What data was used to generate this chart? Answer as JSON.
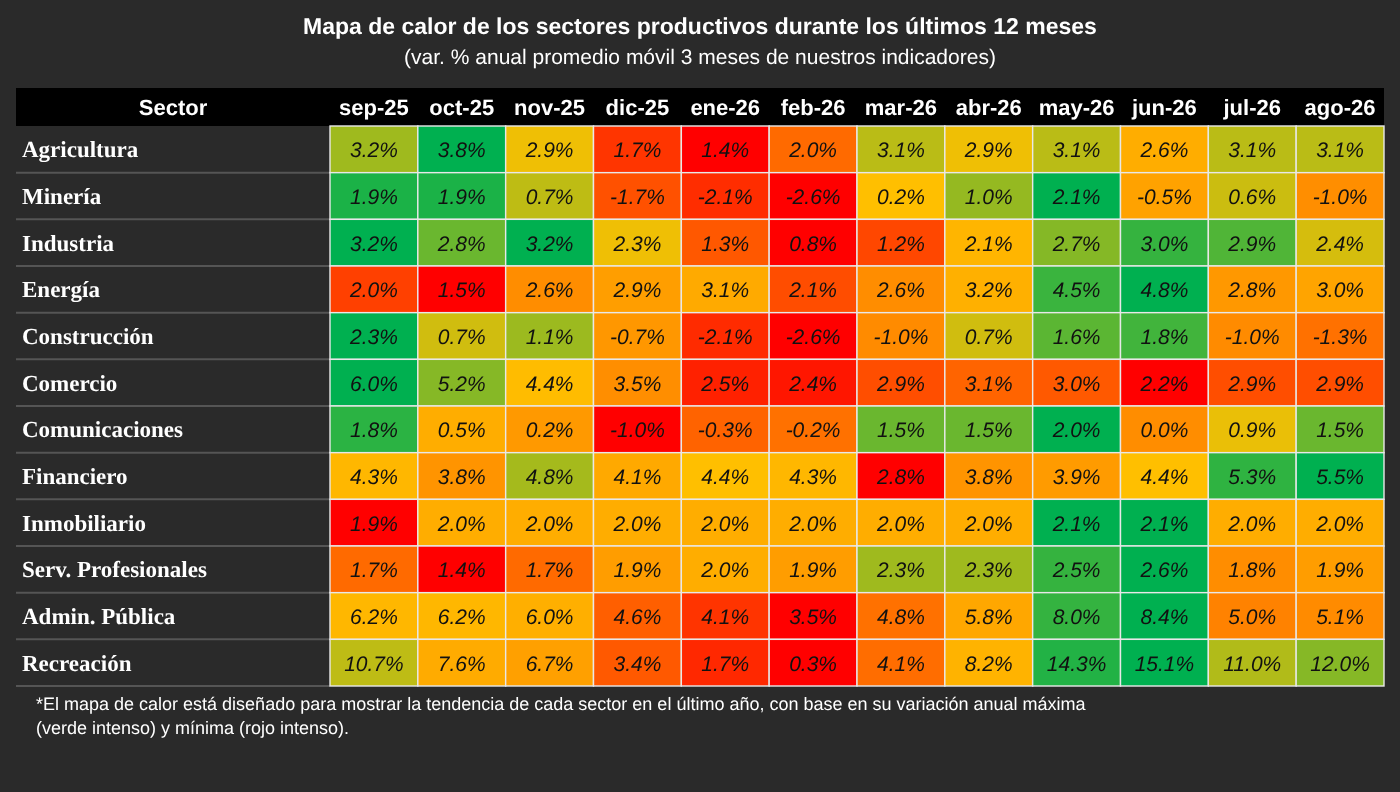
{
  "chart_data": {
    "type": "heatmap",
    "title": "Mapa de calor de los sectores productivos durante los últimos 12 meses",
    "subtitle": "(var. % anual promedio móvil 3 meses de nuestros indicadores)",
    "ylabel": "Sector",
    "categories": [
      "sep-25",
      "oct-25",
      "nov-25",
      "dic-25",
      "ene-26",
      "feb-26",
      "mar-26",
      "abr-26",
      "may-26",
      "jun-26",
      "jul-26",
      "ago-26"
    ],
    "y_categories": [
      "Agricultura",
      "Minería",
      "Industria",
      "Energía",
      "Construcción",
      "Comercio",
      "Comunicaciones",
      "Financiero",
      "Inmobiliario",
      "Serv. Profesionales",
      "Admin. Pública",
      "Recreación"
    ],
    "cells": [
      [
        3.2,
        3.8,
        2.9,
        1.7,
        1.4,
        2.0,
        3.1,
        2.9,
        3.1,
        2.6,
        3.1,
        3.1
      ],
      [
        1.9,
        1.9,
        0.7,
        -1.7,
        -2.1,
        -2.6,
        0.2,
        1.0,
        2.1,
        -0.5,
        0.6,
        -1.0
      ],
      [
        3.2,
        2.8,
        3.2,
        2.3,
        1.3,
        0.8,
        1.2,
        2.1,
        2.7,
        3.0,
        2.9,
        2.4
      ],
      [
        2.0,
        1.5,
        2.6,
        2.9,
        3.1,
        2.1,
        2.6,
        3.2,
        4.5,
        4.8,
        2.8,
        3.0
      ],
      [
        2.3,
        0.7,
        1.1,
        -0.7,
        -2.1,
        -2.6,
        -1.0,
        0.7,
        1.6,
        1.8,
        -1.0,
        -1.3
      ],
      [
        6.0,
        5.2,
        4.4,
        3.5,
        2.5,
        2.4,
        2.9,
        3.1,
        3.0,
        2.2,
        2.9,
        2.9
      ],
      [
        1.8,
        0.5,
        0.2,
        -1.0,
        -0.3,
        -0.2,
        1.5,
        1.5,
        2.0,
        0.0,
        0.9,
        1.5
      ],
      [
        4.3,
        3.8,
        4.8,
        4.1,
        4.4,
        4.3,
        2.8,
        3.8,
        3.9,
        4.4,
        5.3,
        5.5
      ],
      [
        1.9,
        2.0,
        2.0,
        2.0,
        2.0,
        2.0,
        2.0,
        2.0,
        2.1,
        2.1,
        2.0,
        2.0
      ],
      [
        1.7,
        1.4,
        1.7,
        1.9,
        2.0,
        1.9,
        2.3,
        2.3,
        2.5,
        2.6,
        1.8,
        1.9
      ],
      [
        6.2,
        6.2,
        6.0,
        4.6,
        4.1,
        3.5,
        4.8,
        5.8,
        8.0,
        8.4,
        5.0,
        5.1
      ],
      [
        10.7,
        7.6,
        6.7,
        3.4,
        1.7,
        0.3,
        4.1,
        8.2,
        14.3,
        15.1,
        11.0,
        12.0
      ]
    ],
    "cell_labels": [
      [
        "3.2%",
        "3.8%",
        "2.9%",
        "1.7%",
        "1.4%",
        "2.0%",
        "3.1%",
        "2.9%",
        "3.1%",
        "2.6%",
        "3.1%",
        "3.1%"
      ],
      [
        "1.9%",
        "1.9%",
        "0.7%",
        "-1.7%",
        "-2.1%",
        "-2.6%",
        "0.2%",
        "1.0%",
        "2.1%",
        "-0.5%",
        "0.6%",
        "-1.0%"
      ],
      [
        "3.2%",
        "2.8%",
        "3.2%",
        "2.3%",
        "1.3%",
        "0.8%",
        "1.2%",
        "2.1%",
        "2.7%",
        "3.0%",
        "2.9%",
        "2.4%"
      ],
      [
        "2.0%",
        "1.5%",
        "2.6%",
        "2.9%",
        "3.1%",
        "2.1%",
        "2.6%",
        "3.2%",
        "4.5%",
        "4.8%",
        "2.8%",
        "3.0%"
      ],
      [
        "2.3%",
        "0.7%",
        "1.1%",
        "-0.7%",
        "-2.1%",
        "-2.6%",
        "-1.0%",
        "0.7%",
        "1.6%",
        "1.8%",
        "-1.0%",
        "-1.3%"
      ],
      [
        "6.0%",
        "5.2%",
        "4.4%",
        "3.5%",
        "2.5%",
        "2.4%",
        "2.9%",
        "3.1%",
        "3.0%",
        "2.2%",
        "2.9%",
        "2.9%"
      ],
      [
        "1.8%",
        "0.5%",
        "0.2%",
        "-1.0%",
        "-0.3%",
        "-0.2%",
        "1.5%",
        "1.5%",
        "2.0%",
        "0.0%",
        "0.9%",
        "1.5%"
      ],
      [
        "4.3%",
        "3.8%",
        "4.8%",
        "4.1%",
        "4.4%",
        "4.3%",
        "2.8%",
        "3.8%",
        "3.9%",
        "4.4%",
        "5.3%",
        "5.5%"
      ],
      [
        "1.9%",
        "2.0%",
        "2.0%",
        "2.0%",
        "2.0%",
        "2.0%",
        "2.0%",
        "2.0%",
        "2.1%",
        "2.1%",
        "2.0%",
        "2.0%"
      ],
      [
        "1.7%",
        "1.4%",
        "1.7%",
        "1.9%",
        "2.0%",
        "1.9%",
        "2.3%",
        "2.3%",
        "2.5%",
        "2.6%",
        "1.8%",
        "1.9%"
      ],
      [
        "6.2%",
        "6.2%",
        "6.0%",
        "4.6%",
        "4.1%",
        "3.5%",
        "4.8%",
        "5.8%",
        "8.0%",
        "8.4%",
        "5.0%",
        "5.1%"
      ],
      [
        "10.7%",
        "7.6%",
        "6.7%",
        "3.4%",
        "1.7%",
        "0.3%",
        "4.1%",
        "8.2%",
        "14.3%",
        "15.1%",
        "11.0%",
        "12.0%"
      ]
    ],
    "annotations": [
      "*El mapa de calor está diseñado para mostrar la tendencia de cada sector en el último año, con base en su variación anual máxima (verde intenso) y mínima (rojo intenso)."
    ]
  }
}
